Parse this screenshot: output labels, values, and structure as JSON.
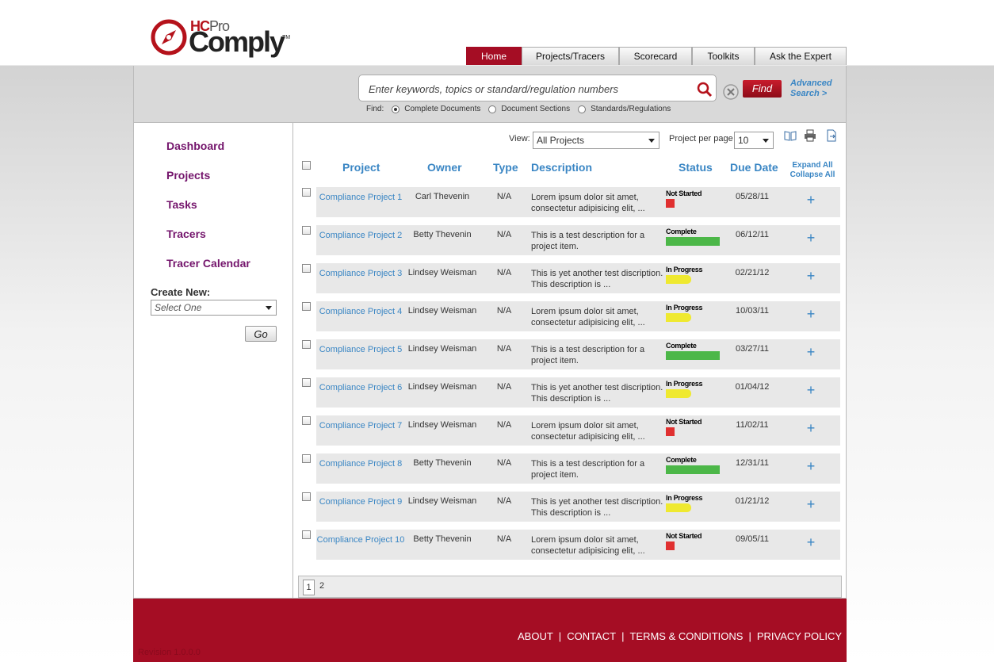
{
  "brand": {
    "logo_top": "HCPro",
    "logo_main": "Comply",
    "trademark": "TM"
  },
  "nav": {
    "tabs": [
      {
        "label": "Home",
        "active": true
      },
      {
        "label": "Projects/Tracers"
      },
      {
        "label": "Scorecard"
      },
      {
        "label": "Toolkits"
      },
      {
        "label": "Ask the Expert"
      }
    ]
  },
  "search": {
    "placeholder": "Enter keywords, topics or standard/regulation numbers",
    "find_label": "Find",
    "advanced_line1": "Advanced",
    "advanced_line2": "Search >",
    "find_options_label": "Find:",
    "options": [
      "Complete Documents",
      "Document Sections",
      "Standards/Regulations"
    ],
    "selected_option": "Complete Documents"
  },
  "sidebar": {
    "links": [
      "Dashboard",
      "Projects",
      "Tasks",
      "Tracers",
      "Tracer Calendar"
    ],
    "create_new_label": "Create New:",
    "create_select_placeholder": "Select One",
    "go_label": "Go"
  },
  "toolbar": {
    "view_label": "View:",
    "view_value": "All Projects",
    "per_page_label": "Project per page",
    "per_page_value": "10",
    "icons": [
      "book-icon",
      "print-icon",
      "export-icon"
    ]
  },
  "table": {
    "headers": {
      "project": "Project",
      "owner": "Owner",
      "type": "Type",
      "description": "Description",
      "status": "Status",
      "due": "Due Date"
    },
    "expand_all": "Expand All",
    "collapse_all": "Collapse All",
    "rows": [
      {
        "project": "Compliance Project 1",
        "owner": "Carl Thevenin",
        "type": "N/A",
        "desc1": "Lorem ipsum dolor sit amet,",
        "desc2": "consectetur adipisicing elit, ...",
        "status": "Not Started",
        "due": "05/28/11"
      },
      {
        "project": "Compliance Project 2",
        "owner": "Betty Thevenin",
        "type": "N/A",
        "desc1": "This is a test description for a",
        "desc2": "project item.",
        "status": "Complete",
        "due": "06/12/11"
      },
      {
        "project": "Compliance Project 3",
        "owner": "Lindsey Weisman",
        "type": "N/A",
        "desc1": "This is yet another test discription.",
        "desc2": "This description is ...",
        "status": "In Progress",
        "due": "02/21/12"
      },
      {
        "project": "Compliance Project 4",
        "owner": "Lindsey Weisman",
        "type": "N/A",
        "desc1": "Lorem ipsum dolor sit amet,",
        "desc2": "consectetur adipisicing elit, ...",
        "status": "In Progress",
        "due": "10/03/11"
      },
      {
        "project": "Compliance Project 5",
        "owner": "Lindsey Weisman",
        "type": "N/A",
        "desc1": "This is a test description for a",
        "desc2": "project item.",
        "status": "Complete",
        "due": "03/27/11"
      },
      {
        "project": "Compliance Project 6",
        "owner": "Lindsey Weisman",
        "type": "N/A",
        "desc1": "This is yet another test discription.",
        "desc2": "This description is ...",
        "status": "In Progress",
        "due": "01/04/12"
      },
      {
        "project": "Compliance Project 7",
        "owner": "Lindsey Weisman",
        "type": "N/A",
        "desc1": "Lorem ipsum dolor sit amet,",
        "desc2": "consectetur adipisicing elit, ...",
        "status": "Not Started",
        "due": "11/02/11"
      },
      {
        "project": "Compliance Project 8",
        "owner": "Betty Thevenin",
        "type": "N/A",
        "desc1": "This is a test description for a",
        "desc2": "project item.",
        "status": "Complete",
        "due": "12/31/11"
      },
      {
        "project": "Compliance Project 9",
        "owner": "Lindsey Weisman",
        "type": "N/A",
        "desc1": "This is yet another test discription.",
        "desc2": "This description is ...",
        "status": "In Progress",
        "due": "01/21/12"
      },
      {
        "project": "Compliance Project 10",
        "owner": "Betty Thevenin",
        "type": "N/A",
        "desc1": "Lorem ipsum dolor sit amet,",
        "desc2": "consectetur adipisicing elit, ...",
        "status": "Not Started",
        "due": "09/05/11"
      }
    ],
    "expand_symbol": "+"
  },
  "pagination": {
    "current": "1",
    "next": "2"
  },
  "footer": {
    "links": [
      "ABOUT",
      "CONTACT",
      "TERMS & CONDITIONS",
      "PRIVACY POLICY"
    ],
    "separator": "|",
    "revision": "Revision 1.0.0.0"
  },
  "colors": {
    "brand_red": "#a50d24",
    "link_blue": "#3a86c4",
    "sidebar_purple": "#74156c",
    "complete": "#4cb748",
    "in_progress": "#efe930",
    "not_started": "#e03030"
  }
}
